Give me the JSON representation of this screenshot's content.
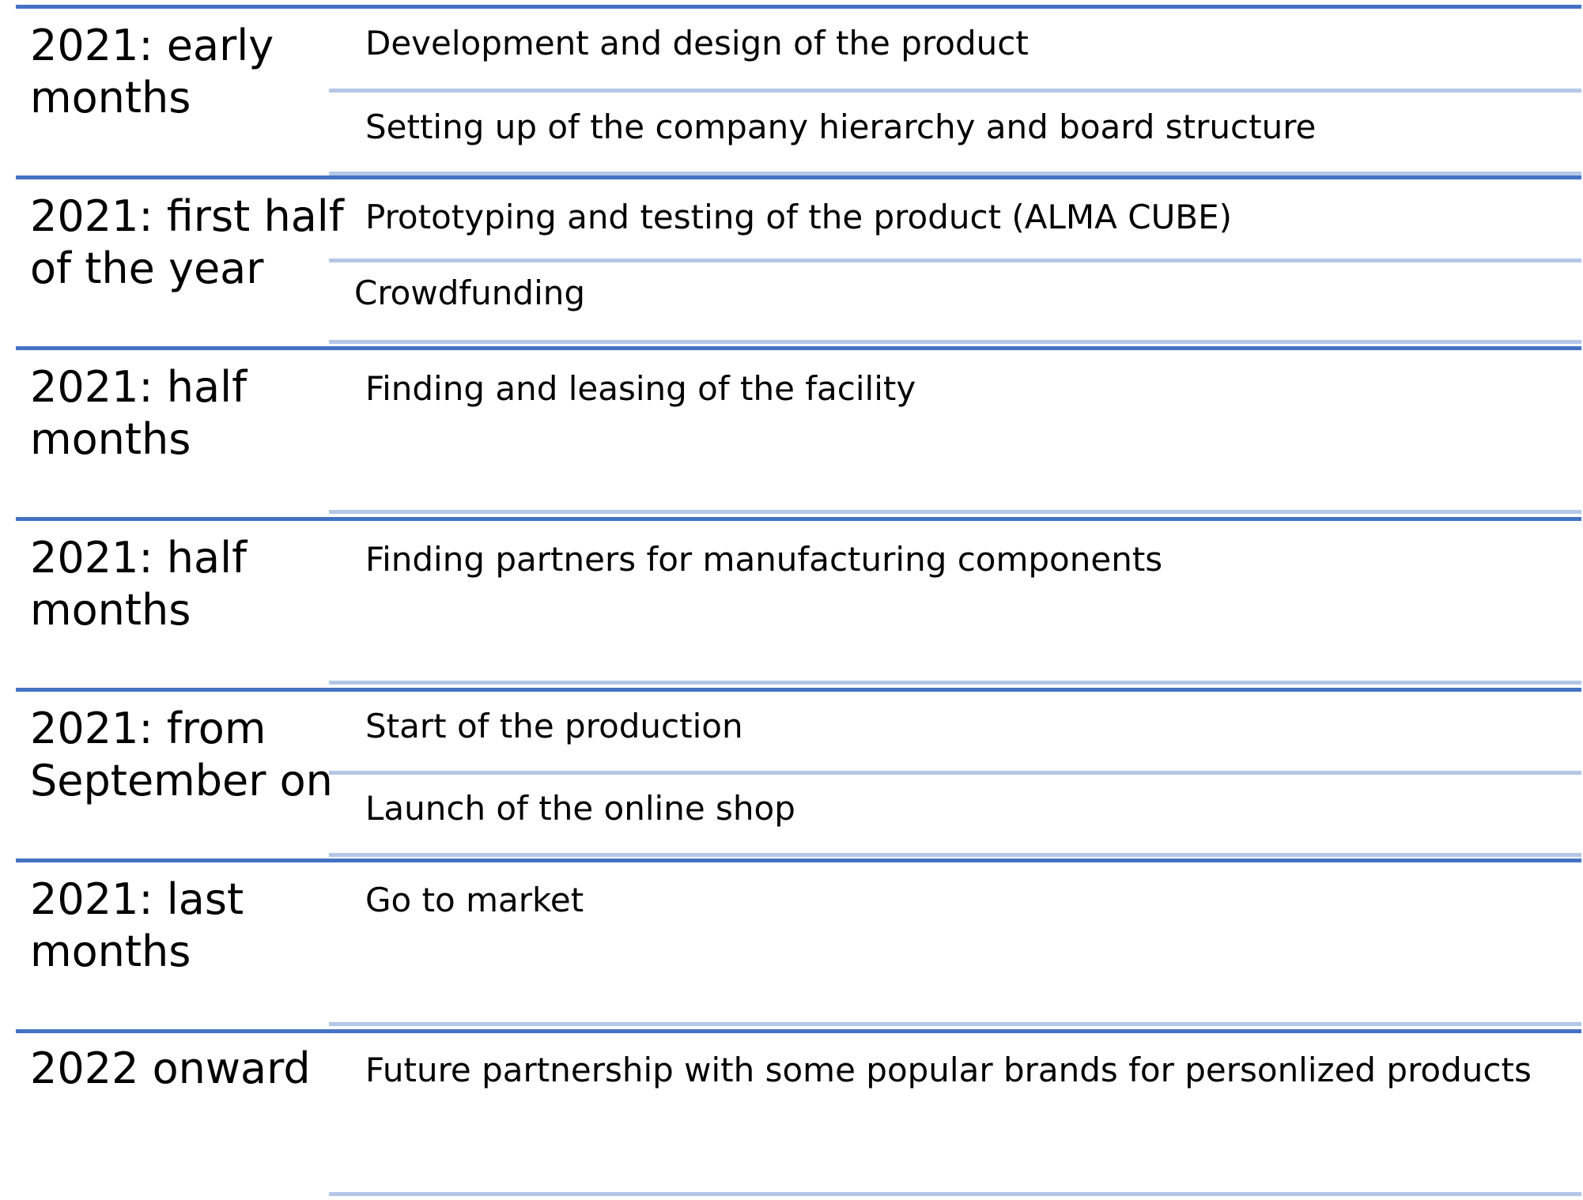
{
  "timeline": {
    "phases": [
      {
        "label": "2021: early months",
        "label_lines": [
          "2021: early",
          "months"
        ],
        "tasks": [
          "Development and design of the product",
          "Setting up of the company hierarchy and board structure"
        ]
      },
      {
        "label": "2021: first half of the year",
        "label_lines": [
          "2021: first half",
          "of the year"
        ],
        "tasks": [
          "Prototyping and testing of the product (ALMA CUBE)",
          "Crowdfunding"
        ]
      },
      {
        "label": "2021: half months",
        "label_lines": [
          "2021: half",
          "months"
        ],
        "tasks": [
          "Finding and leasing of the facility"
        ]
      },
      {
        "label": "2021: half months",
        "label_lines": [
          "2021: half",
          "months"
        ],
        "tasks": [
          "Finding partners for manufacturing components"
        ]
      },
      {
        "label": "2021: from September on",
        "label_lines": [
          "2021: from",
          "September on"
        ],
        "tasks": [
          "Start of the production",
          "Launch of the online shop"
        ]
      },
      {
        "label": "2021: last months",
        "label_lines": [
          "2021: last",
          "months"
        ],
        "tasks": [
          "Go to market"
        ]
      },
      {
        "label": "2022 onward",
        "label_lines": [
          "2022 onward"
        ],
        "tasks": [
          "Future partnership with some popular brands for personlized products"
        ]
      }
    ]
  },
  "colors": {
    "phase_rule": "#4472c4",
    "task_rule": "#b4c7e7",
    "text": "#000000"
  }
}
